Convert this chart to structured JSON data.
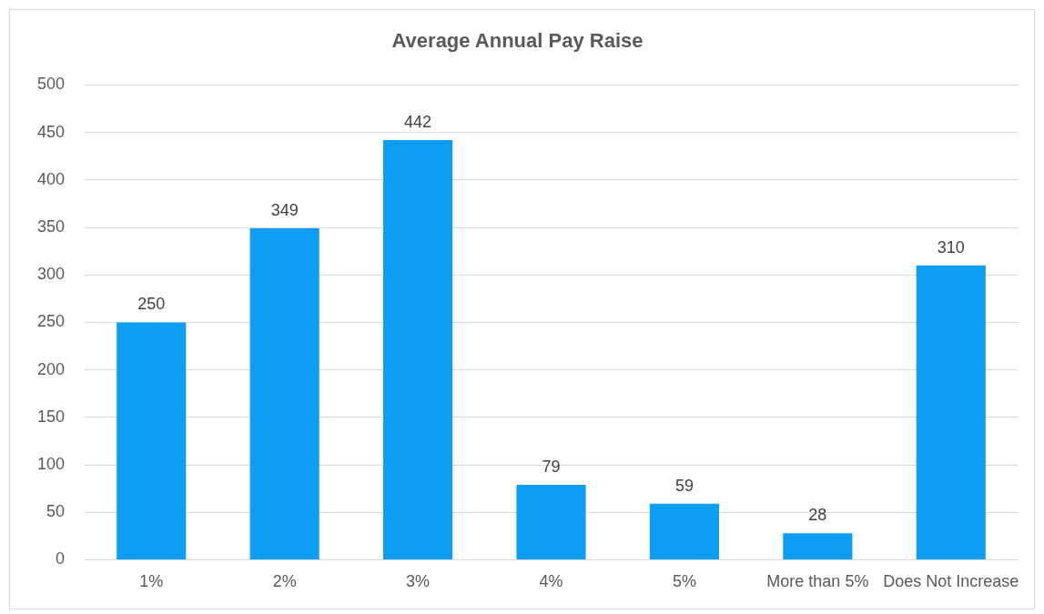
{
  "chart_data": {
    "type": "bar",
    "title": "Average Annual Pay Raise",
    "categories": [
      "1%",
      "2%",
      "3%",
      "4%",
      "5%",
      "More than 5%",
      "Does Not Increase"
    ],
    "values": [
      250,
      349,
      442,
      79,
      59,
      28,
      310
    ],
    "color": "#0d9df2",
    "ylim": [
      0,
      500
    ],
    "yticks": [
      0,
      50,
      100,
      150,
      200,
      250,
      300,
      350,
      400,
      450,
      500
    ],
    "grid": "y",
    "data_labels": true,
    "legend": false
  }
}
